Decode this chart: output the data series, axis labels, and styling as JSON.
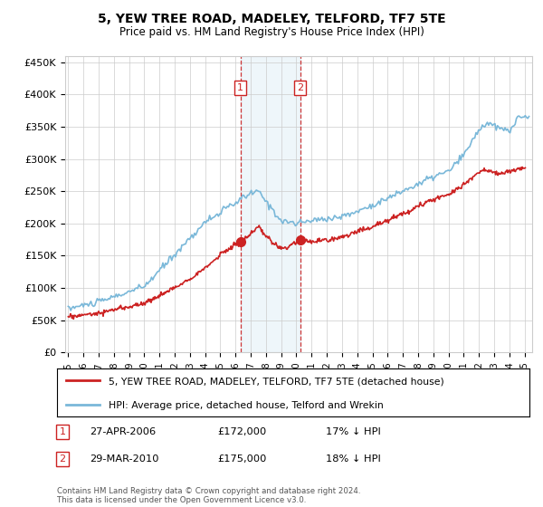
{
  "title": "5, YEW TREE ROAD, MADELEY, TELFORD, TF7 5TE",
  "subtitle": "Price paid vs. HM Land Registry's House Price Index (HPI)",
  "ylim": [
    0,
    460000
  ],
  "yticks": [
    0,
    50000,
    100000,
    150000,
    200000,
    250000,
    300000,
    350000,
    400000,
    450000
  ],
  "ytick_labels": [
    "£0",
    "£50K",
    "£100K",
    "£150K",
    "£200K",
    "£250K",
    "£300K",
    "£350K",
    "£400K",
    "£450K"
  ],
  "legend_entry1": "5, YEW TREE ROAD, MADELEY, TELFORD, TF7 5TE (detached house)",
  "legend_entry2": "HPI: Average price, detached house, Telford and Wrekin",
  "sale1_date": "27-APR-2006",
  "sale1_price": "£172,000",
  "sale1_hpi": "17% ↓ HPI",
  "sale2_date": "29-MAR-2010",
  "sale2_price": "£175,000",
  "sale2_hpi": "18% ↓ HPI",
  "footnote": "Contains HM Land Registry data © Crown copyright and database right 2024.\nThis data is licensed under the Open Government Licence v3.0.",
  "hpi_color": "#7ab8d9",
  "sale_color": "#cc2222",
  "sale1_x": 2006.32,
  "sale1_y": 172000,
  "sale2_x": 2010.24,
  "sale2_y": 175000,
  "background_color": "#ffffff",
  "grid_color": "#cccccc",
  "xlim_left": 1994.8,
  "xlim_right": 2025.5
}
